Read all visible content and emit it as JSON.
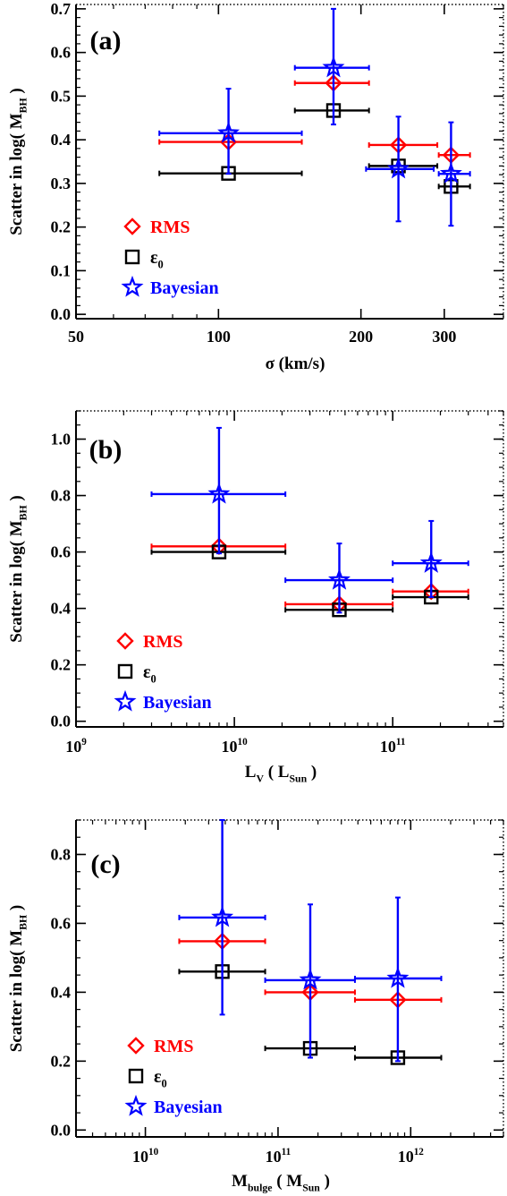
{
  "figure": {
    "colors": {
      "rms": "#ff0000",
      "eps0": "#000000",
      "bayesian": "#0000ff",
      "axis": "#000000"
    },
    "legend_labels": {
      "rms": "RMS",
      "eps0": "ε",
      "eps0_sub": "0",
      "bayesian": "Bayesian"
    }
  },
  "chart_data": [
    {
      "panel_label": "(a)",
      "type": "scatter",
      "xscale": "log",
      "xlim": [
        50,
        400
      ],
      "ylim": [
        -0.01,
        0.71
      ],
      "xlabel": "σ  (km/s)",
      "ylabel": {
        "main": "Scatter  in   log( M",
        "sub": "BH",
        "end": " )"
      },
      "xticks": [
        {
          "value": 50,
          "label": "50"
        },
        {
          "value": 100,
          "label": "100"
        },
        {
          "value": 200,
          "label": "200"
        },
        {
          "value": 300,
          "label": "300"
        }
      ],
      "xminor": [
        60,
        70,
        80,
        90,
        400
      ],
      "yticks": [
        {
          "value": 0.0,
          "label": "0.0"
        },
        {
          "value": 0.1,
          "label": "0.1"
        },
        {
          "value": 0.2,
          "label": "0.2"
        },
        {
          "value": 0.3,
          "label": "0.3"
        },
        {
          "value": 0.4,
          "label": "0.4"
        },
        {
          "value": 0.5,
          "label": "0.5"
        },
        {
          "value": 0.6,
          "label": "0.6"
        },
        {
          "value": 0.7,
          "label": "0.7"
        }
      ],
      "yminor_step": 0.02,
      "legend": "bottom-left",
      "series": [
        {
          "key": "rms",
          "name": "RMS",
          "marker": "diamond",
          "points": [
            {
              "x": 105,
              "y": 0.395,
              "xerr": [
                75,
                150
              ]
            },
            {
              "x": 175,
              "y": 0.53,
              "xerr": [
                145,
                208
              ]
            },
            {
              "x": 240,
              "y": 0.388,
              "xerr": [
                208,
                290
              ]
            },
            {
              "x": 310,
              "y": 0.365,
              "xerr": [
                292,
                340
              ]
            }
          ]
        },
        {
          "key": "eps0",
          "name": "ε0",
          "marker": "square",
          "points": [
            {
              "x": 105,
              "y": 0.323,
              "xerr": [
                75,
                150
              ]
            },
            {
              "x": 175,
              "y": 0.467,
              "xerr": [
                145,
                208
              ]
            },
            {
              "x": 240,
              "y": 0.34,
              "xerr": [
                208,
                290
              ]
            },
            {
              "x": 310,
              "y": 0.293,
              "xerr": [
                292,
                340
              ]
            }
          ]
        },
        {
          "key": "bayesian",
          "name": "Bayesian",
          "marker": "star",
          "points": [
            {
              "x": 105,
              "y": 0.415,
              "xerr": [
                75,
                150
              ],
              "yerr": [
                0.322,
                0.517
              ]
            },
            {
              "x": 175,
              "y": 0.565,
              "xerr": [
                145,
                208
              ],
              "yerr": [
                0.435,
                0.7
              ]
            },
            {
              "x": 240,
              "y": 0.333,
              "xerr": [
                205,
                285
              ],
              "yerr": [
                0.213,
                0.453
              ]
            },
            {
              "x": 310,
              "y": 0.322,
              "xerr": [
                292,
                340
              ],
              "yerr": [
                0.203,
                0.44
              ]
            }
          ]
        }
      ]
    },
    {
      "panel_label": "(b)",
      "type": "scatter",
      "xscale": "log",
      "xlim": [
        1000000000.0,
        500000000000.0
      ],
      "ylim": [
        -0.02,
        1.1
      ],
      "xlabel": {
        "main": "L",
        "sub": "V",
        "mid": "   ( L",
        "sub2": "Sun",
        "end": " )"
      },
      "ylabel": {
        "main": "Scatter  in   log( M",
        "sub": "BH",
        "end": " )"
      },
      "xticks": [
        {
          "value": 1000000000.0,
          "base": "10",
          "exp": "9"
        },
        {
          "value": 10000000000.0,
          "base": "10",
          "exp": "10"
        },
        {
          "value": 100000000000.0,
          "base": "10",
          "exp": "11"
        }
      ],
      "xminor": [
        2000000000.0,
        3000000000.0,
        4000000000.0,
        5000000000.0,
        6000000000.0,
        7000000000.0,
        8000000000.0,
        9000000000.0,
        20000000000.0,
        30000000000.0,
        40000000000.0,
        50000000000.0,
        60000000000.0,
        70000000000.0,
        80000000000.0,
        90000000000.0,
        200000000000.0,
        300000000000.0,
        400000000000.0,
        500000000000.0
      ],
      "yticks": [
        {
          "value": 0.0,
          "label": "0.0"
        },
        {
          "value": 0.2,
          "label": "0.2"
        },
        {
          "value": 0.4,
          "label": "0.4"
        },
        {
          "value": 0.6,
          "label": "0.6"
        },
        {
          "value": 0.8,
          "label": "0.8"
        },
        {
          "value": 1.0,
          "label": "1.0"
        }
      ],
      "yminor_step": 0.05,
      "legend": "bottom-left",
      "series": [
        {
          "key": "rms",
          "name": "RMS",
          "marker": "diamond",
          "points": [
            {
              "x": 8000000000.0,
              "y": 0.62,
              "xerr": [
                3000000000.0,
                21000000000.0
              ]
            },
            {
              "x": 46000000000.0,
              "y": 0.415,
              "xerr": [
                21000000000.0,
                100000000000.0
              ]
            },
            {
              "x": 175000000000.0,
              "y": 0.46,
              "xerr": [
                100000000000.0,
                300000000000.0
              ]
            }
          ]
        },
        {
          "key": "eps0",
          "name": "ε0",
          "marker": "square",
          "points": [
            {
              "x": 8000000000.0,
              "y": 0.6,
              "xerr": [
                3000000000.0,
                21000000000.0
              ]
            },
            {
              "x": 46000000000.0,
              "y": 0.395,
              "xerr": [
                21000000000.0,
                100000000000.0
              ]
            },
            {
              "x": 175000000000.0,
              "y": 0.44,
              "xerr": [
                100000000000.0,
                300000000000.0
              ]
            }
          ]
        },
        {
          "key": "bayesian",
          "name": "Bayesian",
          "marker": "star",
          "points": [
            {
              "x": 8000000000.0,
              "y": 0.805,
              "xerr": [
                3000000000.0,
                21000000000.0
              ],
              "yerr": [
                0.595,
                1.04
              ]
            },
            {
              "x": 46000000000.0,
              "y": 0.5,
              "xerr": [
                21000000000.0,
                100000000000.0
              ],
              "yerr": [
                0.385,
                0.63
              ]
            },
            {
              "x": 175000000000.0,
              "y": 0.56,
              "xerr": [
                100000000000.0,
                300000000000.0
              ],
              "yerr": [
                0.44,
                0.71
              ]
            }
          ]
        }
      ]
    },
    {
      "panel_label": "(c)",
      "type": "scatter",
      "xscale": "log",
      "xlim": [
        3000000000.0,
        5000000000000.0
      ],
      "ylim": [
        -0.02,
        0.9
      ],
      "xlabel": {
        "main": "M",
        "sub": "bulge",
        "mid": "  ( M",
        "sub2": "Sun",
        "end": " )"
      },
      "ylabel": {
        "main": "Scatter  in   log( M",
        "sub": "BH",
        "end": " )"
      },
      "xticks": [
        {
          "value": 10000000000.0,
          "base": "10",
          "exp": "10"
        },
        {
          "value": 100000000000.0,
          "base": "10",
          "exp": "11"
        },
        {
          "value": 1000000000000.0,
          "base": "10",
          "exp": "12"
        }
      ],
      "xminor": [
        4000000000.0,
        5000000000.0,
        6000000000.0,
        7000000000.0,
        8000000000.0,
        9000000000.0,
        20000000000.0,
        30000000000.0,
        40000000000.0,
        50000000000.0,
        60000000000.0,
        70000000000.0,
        80000000000.0,
        90000000000.0,
        200000000000.0,
        300000000000.0,
        400000000000.0,
        500000000000.0,
        600000000000.0,
        700000000000.0,
        800000000000.0,
        900000000000.0,
        2000000000000.0,
        3000000000000.0,
        4000000000000.0,
        5000000000000.0
      ],
      "yticks": [
        {
          "value": 0.0,
          "label": "0.0"
        },
        {
          "value": 0.2,
          "label": "0.2"
        },
        {
          "value": 0.4,
          "label": "0.4"
        },
        {
          "value": 0.6,
          "label": "0.6"
        },
        {
          "value": 0.8,
          "label": "0.8"
        }
      ],
      "yminor_step": 0.05,
      "legend": "bottom-left",
      "series": [
        {
          "key": "rms",
          "name": "RMS",
          "marker": "diamond",
          "points": [
            {
              "x": 38000000000.0,
              "y": 0.548,
              "xerr": [
                18000000000.0,
                80000000000.0
              ]
            },
            {
              "x": 175000000000.0,
              "y": 0.4,
              "xerr": [
                80000000000.0,
                380000000000.0
              ]
            },
            {
              "x": 800000000000.0,
              "y": 0.378,
              "xerr": [
                380000000000.0,
                1700000000000.0
              ]
            }
          ]
        },
        {
          "key": "eps0",
          "name": "ε0",
          "marker": "square",
          "points": [
            {
              "x": 38000000000.0,
              "y": 0.46,
              "xerr": [
                18000000000.0,
                80000000000.0
              ]
            },
            {
              "x": 175000000000.0,
              "y": 0.237,
              "xerr": [
                80000000000.0,
                380000000000.0
              ]
            },
            {
              "x": 800000000000.0,
              "y": 0.21,
              "xerr": [
                380000000000.0,
                1700000000000.0
              ]
            }
          ]
        },
        {
          "key": "bayesian",
          "name": "Bayesian",
          "marker": "star",
          "points": [
            {
              "x": 38000000000.0,
              "y": 0.617,
              "xerr": [
                18000000000.0,
                80000000000.0
              ],
              "yerr": [
                0.335,
                0.9
              ]
            },
            {
              "x": 175000000000.0,
              "y": 0.435,
              "xerr": [
                80000000000.0,
                380000000000.0
              ],
              "yerr": [
                0.21,
                0.655
              ]
            },
            {
              "x": 800000000000.0,
              "y": 0.44,
              "xerr": [
                380000000000.0,
                1700000000000.0
              ],
              "yerr": [
                0.2,
                0.675
              ]
            }
          ]
        }
      ]
    }
  ]
}
